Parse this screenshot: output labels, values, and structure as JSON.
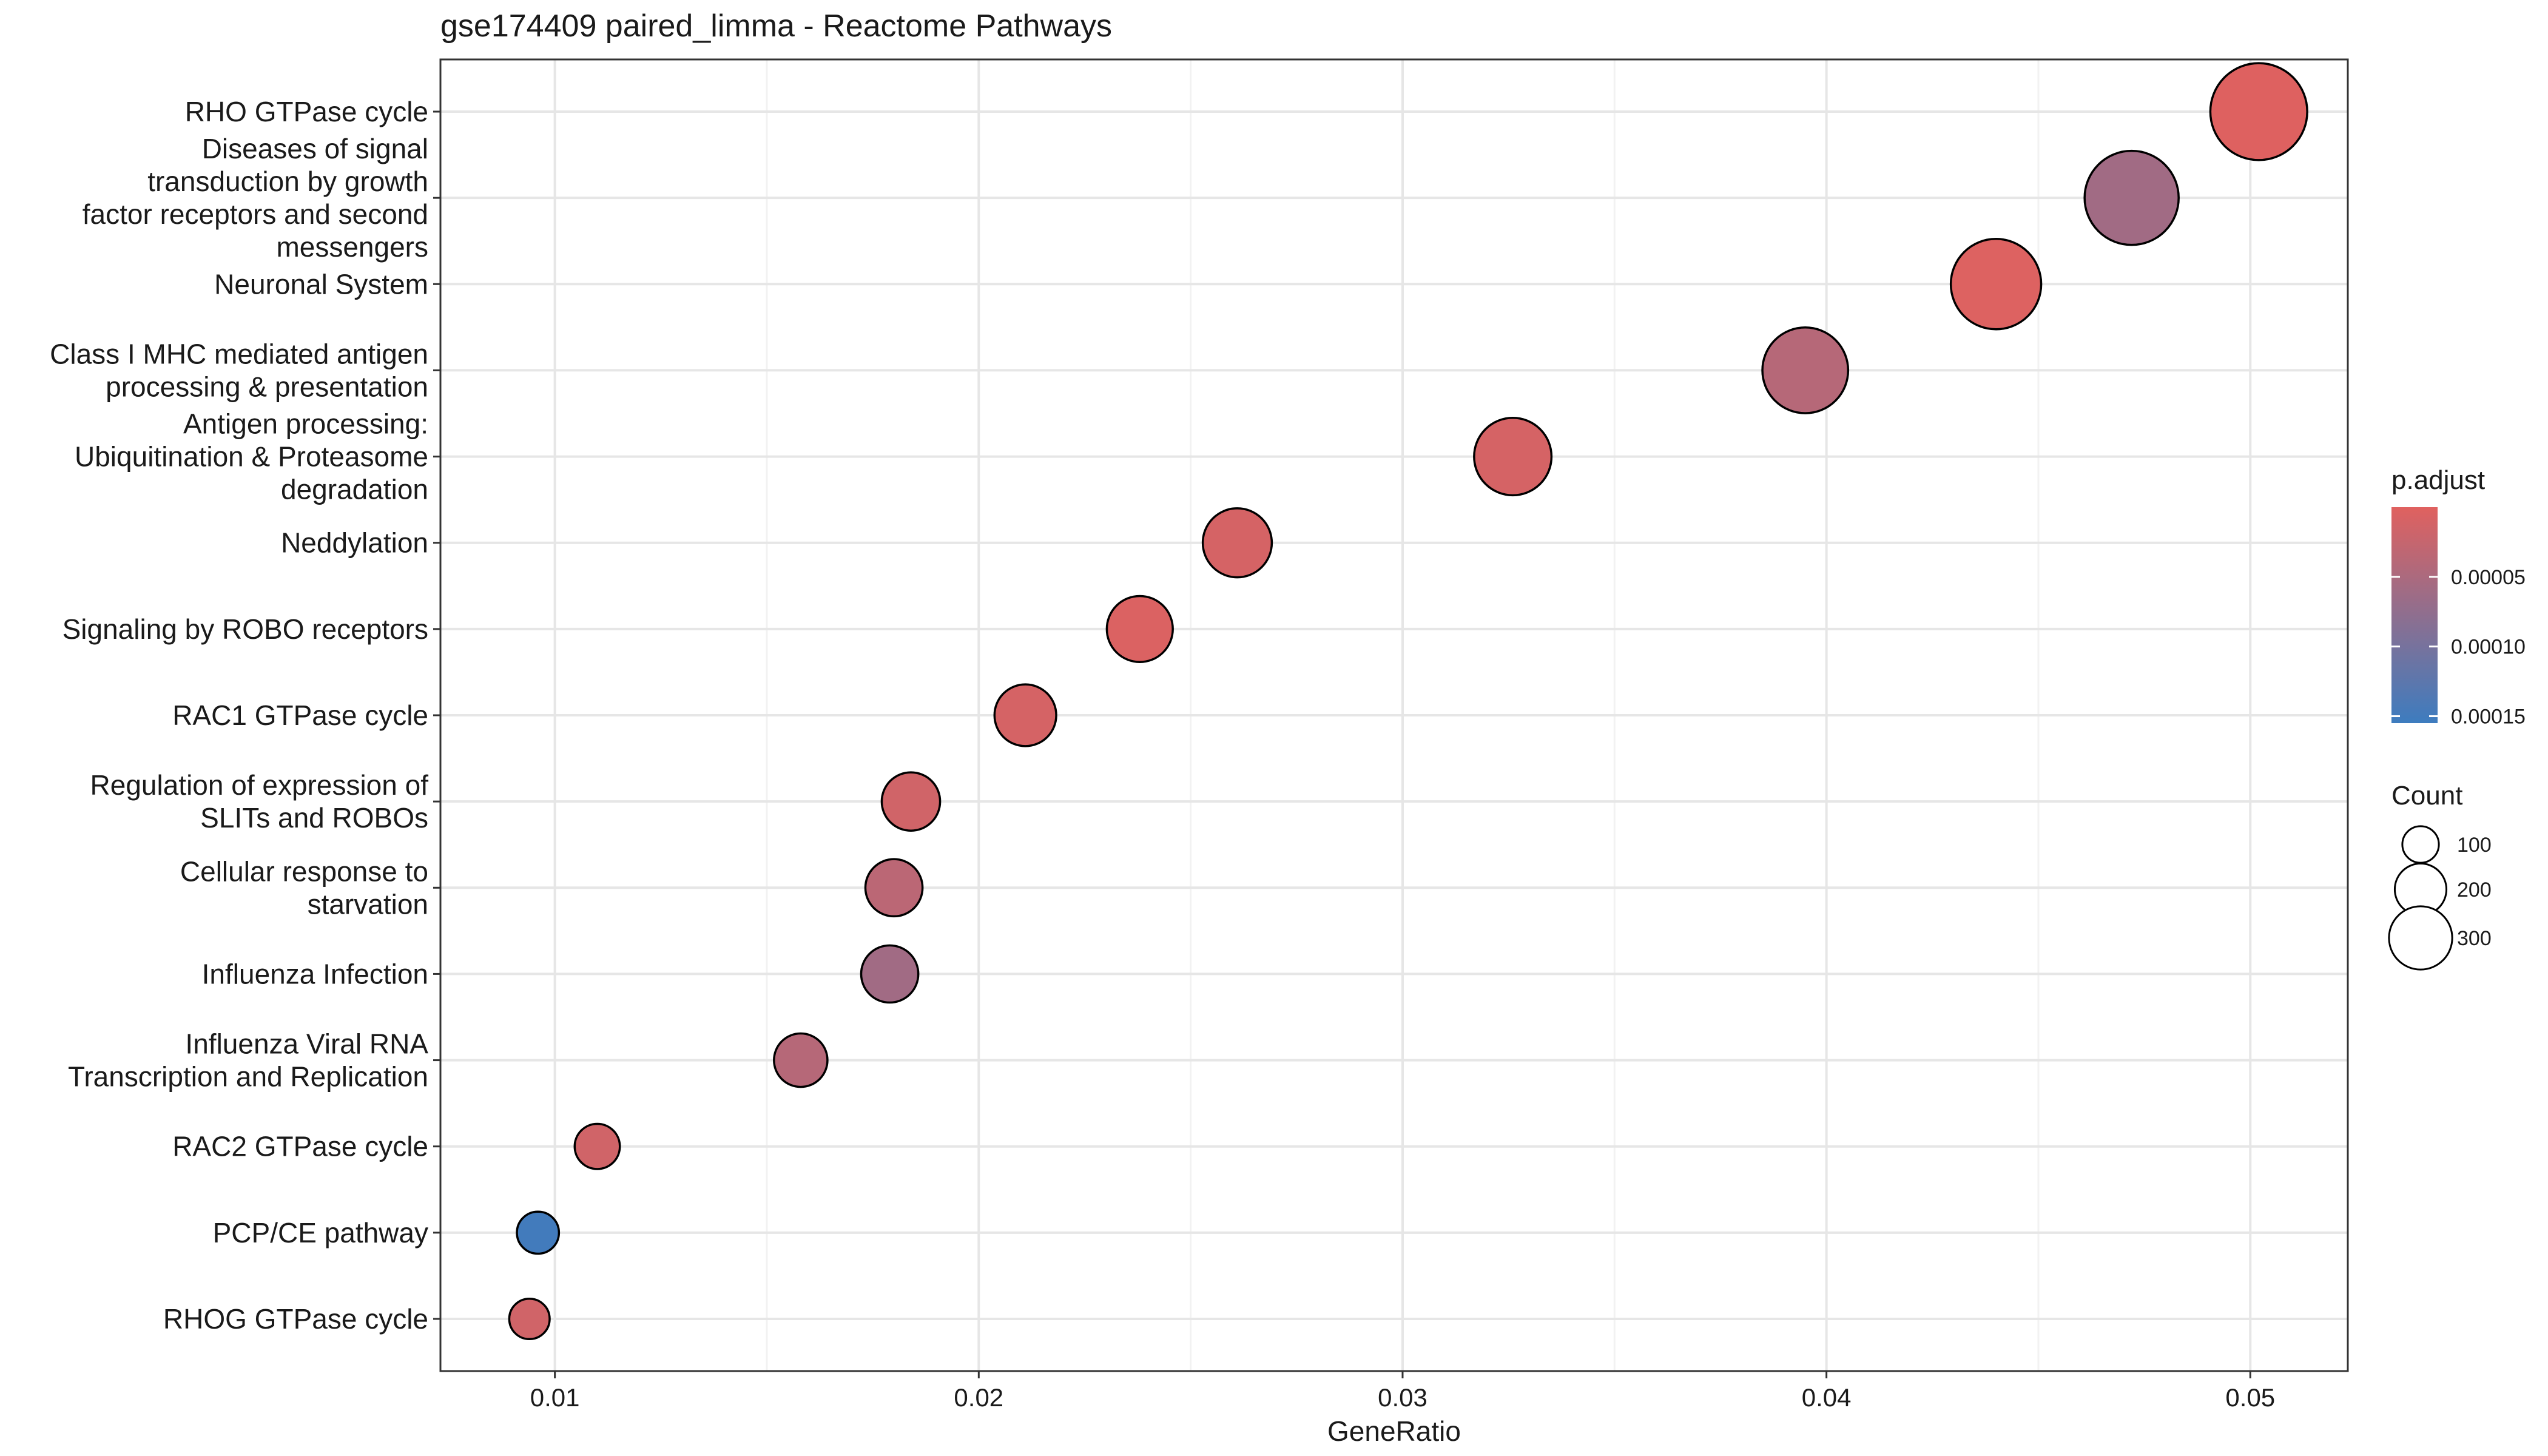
{
  "chart_data": {
    "type": "scatter",
    "title": "gse174409 paired_limma - Reactome Pathways",
    "xlabel": "GeneRatio",
    "ylabel": "",
    "xlim": [
      0.0073,
      0.0523
    ],
    "x_ticks": [
      {
        "value": 0.01,
        "label": "0.01"
      },
      {
        "value": 0.02,
        "label": "0.02"
      },
      {
        "value": 0.03,
        "label": "0.03"
      },
      {
        "value": 0.04,
        "label": "0.04"
      },
      {
        "value": 0.05,
        "label": "0.05"
      }
    ],
    "grid": true,
    "categories": [
      {
        "label": [
          "RHO GTPase cycle"
        ],
        "x": 0.0502,
        "count": 345,
        "p_adjust": 2e-06
      },
      {
        "label": [
          "Diseases of signal",
          "transduction by growth",
          "factor receptors and second",
          "messengers"
        ],
        "x": 0.0472,
        "count": 325,
        "p_adjust": 6e-05
      },
      {
        "label": [
          "Neuronal System"
        ],
        "x": 0.044,
        "count": 300,
        "p_adjust": 3e-06
      },
      {
        "label": [
          "Class I MHC mediated antigen",
          "processing & presentation"
        ],
        "x": 0.0395,
        "count": 270,
        "p_adjust": 4e-05
      },
      {
        "label": [
          "Antigen processing:",
          "Ubiquitination & Proteasome",
          "degradation"
        ],
        "x": 0.0326,
        "count": 220,
        "p_adjust": 1e-05
      },
      {
        "label": [
          "Neddylation"
        ],
        "x": 0.0261,
        "count": 175,
        "p_adjust": 1e-05
      },
      {
        "label": [
          "Signaling by ROBO receptors"
        ],
        "x": 0.0238,
        "count": 160,
        "p_adjust": 5e-06
      },
      {
        "label": [
          "RAC1 GTPase cycle"
        ],
        "x": 0.0211,
        "count": 140,
        "p_adjust": 1e-05
      },
      {
        "label": [
          "Regulation of expression of",
          "SLITs and ROBOs"
        ],
        "x": 0.0184,
        "count": 125,
        "p_adjust": 1.5e-05
      },
      {
        "label": [
          "Cellular response to",
          "starvation"
        ],
        "x": 0.018,
        "count": 120,
        "p_adjust": 3.5e-05
      },
      {
        "label": [
          "Influenza Infection"
        ],
        "x": 0.0179,
        "count": 120,
        "p_adjust": 6e-05
      },
      {
        "label": [
          "Influenza Viral RNA",
          "Transcription and Replication"
        ],
        "x": 0.0158,
        "count": 105,
        "p_adjust": 4e-05
      },
      {
        "label": [
          "RAC2 GTPase cycle"
        ],
        "x": 0.011,
        "count": 75,
        "p_adjust": 1.5e-05
      },
      {
        "label": [
          "PCP/CE pathway"
        ],
        "x": 0.0096,
        "count": 65,
        "p_adjust": 0.00015
      },
      {
        "label": [
          "RHOG GTPase cycle"
        ],
        "x": 0.0094,
        "count": 60,
        "p_adjust": 1.5e-05
      }
    ],
    "color_legend": {
      "title": "p.adjust",
      "range": [
        0.0,
        0.000155
      ],
      "low_color": "#e0615f",
      "high_color": "#3d7cbf",
      "ticks": [
        {
          "value": 5e-05,
          "label": "0.00005"
        },
        {
          "value": 0.0001,
          "label": "0.00010"
        },
        {
          "value": 0.00015,
          "label": "0.00015"
        }
      ]
    },
    "size_legend": {
      "title": "Count",
      "entries": [
        {
          "value": 100,
          "label": "100"
        },
        {
          "value": 200,
          "label": "200"
        },
        {
          "value": 300,
          "label": "300"
        }
      ]
    },
    "legend_position": "right"
  }
}
